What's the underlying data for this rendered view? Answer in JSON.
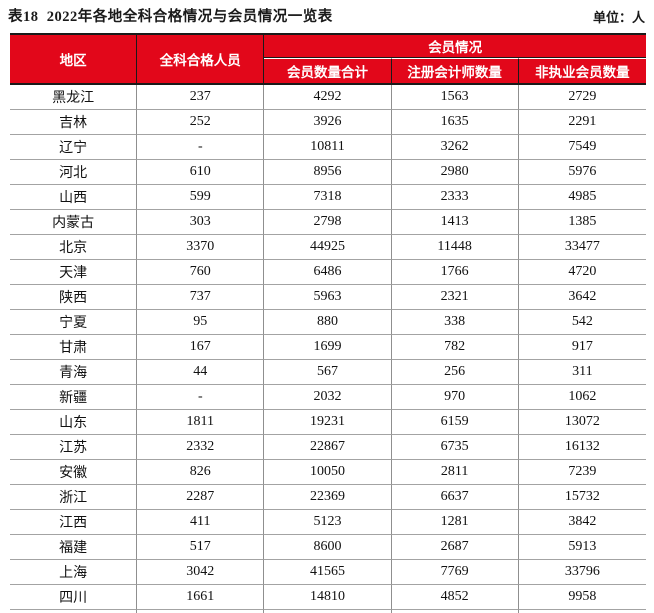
{
  "page": {
    "title": "表18  2022年各地全科合格情况与会员情况一览表",
    "unit_label": "单位：人"
  },
  "colors": {
    "header_bg": "#E2071A",
    "header_text": "#FFFFFF",
    "header_border": "#1A1A1A",
    "row_line": "#A3A3A3",
    "column_line": "#8F8F8F"
  },
  "table": {
    "headers": {
      "region": "地区",
      "qualified": "全科合格人员",
      "member_group": "会员情况",
      "member_total": "会员数量合计",
      "cpa_count": "注册会计师数量",
      "non_practicing": "非执业会员数量"
    },
    "rows": [
      [
        "黑龙江",
        "237",
        "4292",
        "1563",
        "2729"
      ],
      [
        "吉林",
        "252",
        "3926",
        "1635",
        "2291"
      ],
      [
        "辽宁",
        "-",
        "10811",
        "3262",
        "7549"
      ],
      [
        "河北",
        "610",
        "8956",
        "2980",
        "5976"
      ],
      [
        "山西",
        "599",
        "7318",
        "2333",
        "4985"
      ],
      [
        "内蒙古",
        "303",
        "2798",
        "1413",
        "1385"
      ],
      [
        "北京",
        "3370",
        "44925",
        "11448",
        "33477"
      ],
      [
        "天津",
        "760",
        "6486",
        "1766",
        "4720"
      ],
      [
        "陕西",
        "737",
        "5963",
        "2321",
        "3642"
      ],
      [
        "宁夏",
        "95",
        "880",
        "338",
        "542"
      ],
      [
        "甘肃",
        "167",
        "1699",
        "782",
        "917"
      ],
      [
        "青海",
        "44",
        "567",
        "256",
        "311"
      ],
      [
        "新疆",
        "-",
        "2032",
        "970",
        "1062"
      ],
      [
        "山东",
        "1811",
        "19231",
        "6159",
        "13072"
      ],
      [
        "江苏",
        "2332",
        "22867",
        "6735",
        "16132"
      ],
      [
        "安徽",
        "826",
        "10050",
        "2811",
        "7239"
      ],
      [
        "浙江",
        "2287",
        "22369",
        "6637",
        "15732"
      ],
      [
        "江西",
        "411",
        "5123",
        "1281",
        "3842"
      ],
      [
        "福建",
        "517",
        "8600",
        "2687",
        "5913"
      ],
      [
        "上海",
        "3042",
        "41565",
        "7769",
        "33796"
      ],
      [
        "四川",
        "1661",
        "14810",
        "4852",
        "9958"
      ]
    ]
  }
}
